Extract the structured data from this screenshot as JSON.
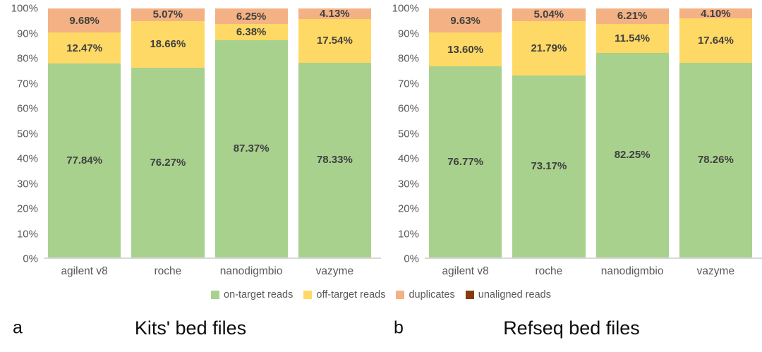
{
  "colors": {
    "on_target": "#a9d18e",
    "off_target": "#ffd966",
    "duplicates": "#f4b183",
    "unaligned": "#843c0c",
    "label_text": "#404040",
    "axis_text": "#595959",
    "axis_line": "#d9d9d9",
    "title_text": "#0d0d0d"
  },
  "legend": [
    {
      "label": "on-target reads",
      "color_key": "on_target"
    },
    {
      "label": "off-target reads",
      "color_key": "off_target"
    },
    {
      "label": "duplicates",
      "color_key": "duplicates"
    },
    {
      "label": "unaligned reads",
      "color_key": "unaligned"
    }
  ],
  "panels": [
    {
      "letter": "a",
      "title": "Kits' bed files"
    },
    {
      "letter": "b",
      "title": "Refseq bed files"
    }
  ],
  "chart_data": [
    {
      "type": "bar",
      "stacked": true,
      "panel_letter": "a",
      "title": "Kits' bed files",
      "categories": [
        "agilent v8",
        "roche",
        "nanodigmbio",
        "vazyme"
      ],
      "series": [
        {
          "name": "on-target reads",
          "color_key": "on_target",
          "values": [
            77.84,
            76.27,
            87.37,
            78.33
          ]
        },
        {
          "name": "off-target reads",
          "color_key": "off_target",
          "values": [
            12.47,
            18.66,
            6.38,
            17.54
          ]
        },
        {
          "name": "duplicates",
          "color_key": "duplicates",
          "values": [
            9.68,
            5.07,
            6.25,
            4.13
          ]
        }
      ],
      "ylabel": "",
      "xlabel": "",
      "ylim": [
        0,
        100
      ],
      "ytick_step": 10,
      "ytick_suffix": "%",
      "grid": false,
      "legend_position": "bottom-shared",
      "data_label_format": "0.00%"
    },
    {
      "type": "bar",
      "stacked": true,
      "panel_letter": "b",
      "title": "Refseq bed files",
      "categories": [
        "agilent v8",
        "roche",
        "nanodigmbio",
        "vazyme"
      ],
      "series": [
        {
          "name": "on-target reads",
          "color_key": "on_target",
          "values": [
            76.77,
            73.17,
            82.25,
            78.26
          ]
        },
        {
          "name": "off-target reads",
          "color_key": "off_target",
          "values": [
            13.6,
            21.79,
            11.54,
            17.64
          ]
        },
        {
          "name": "duplicates",
          "color_key": "duplicates",
          "values": [
            9.63,
            5.04,
            6.21,
            4.1
          ]
        }
      ],
      "ylabel": "",
      "xlabel": "",
      "ylim": [
        0,
        100
      ],
      "ytick_step": 10,
      "ytick_suffix": "%",
      "grid": false,
      "legend_position": "bottom-shared",
      "data_label_format": "0.00%"
    }
  ]
}
